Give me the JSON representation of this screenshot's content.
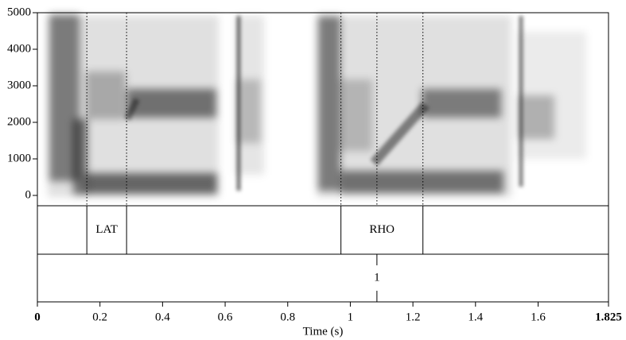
{
  "chart_data": {
    "type": "spectrogram",
    "xlabel": "Time (s)",
    "xlim": [
      0,
      1.825
    ],
    "xticks": [
      0,
      0.2,
      0.4,
      0.6,
      0.8,
      1,
      1.2,
      1.4,
      1.6,
      1.825
    ],
    "ylim": [
      0,
      5000
    ],
    "yticks": [
      0,
      1000,
      2000,
      3000,
      4000,
      5000
    ],
    "tiers": [
      {
        "intervals": [
          {
            "start": 0.158,
            "end": 0.285,
            "label": "LAT"
          },
          {
            "start": 0.97,
            "end": 1.232,
            "label": "RHO"
          }
        ]
      },
      {
        "points": [
          {
            "time": 1.085,
            "label": "1"
          }
        ]
      }
    ]
  }
}
